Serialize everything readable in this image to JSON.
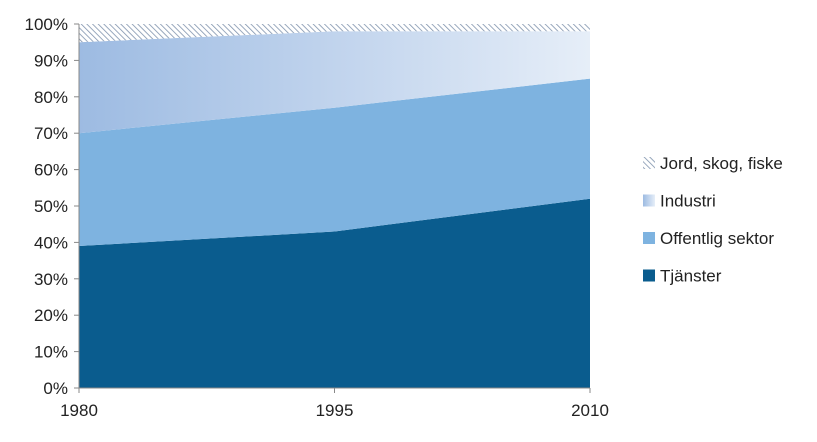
{
  "chart_data": {
    "type": "area",
    "stacked": true,
    "percent": true,
    "x": [
      "1980",
      "1995",
      "2010"
    ],
    "series": [
      {
        "name": "Tjänster",
        "values": [
          39,
          43,
          52
        ],
        "color": "#0a5c8e",
        "pattern": "solid"
      },
      {
        "name": "Offentlig sektor",
        "values": [
          31,
          34,
          33
        ],
        "color": "#7eb3e0",
        "pattern": "solid"
      },
      {
        "name": "Industri",
        "values": [
          25,
          21,
          13
        ],
        "color": "#c9d9ef",
        "pattern": "gradient"
      },
      {
        "name": "Jord, skog, fiske",
        "values": [
          5,
          2,
          2
        ],
        "color": "#7f93ad",
        "pattern": "hatch"
      }
    ],
    "legend_order": [
      "Jord, skog, fiske",
      "Industri",
      "Offentlig sektor",
      "Tjänster"
    ],
    "ylim": [
      0,
      100
    ],
    "yticks": [
      "0%",
      "10%",
      "20%",
      "30%",
      "40%",
      "50%",
      "60%",
      "70%",
      "80%",
      "90%",
      "100%"
    ],
    "xticks": [
      "1980",
      "1995",
      "2010"
    ],
    "grid": false,
    "legend_position": "right"
  }
}
